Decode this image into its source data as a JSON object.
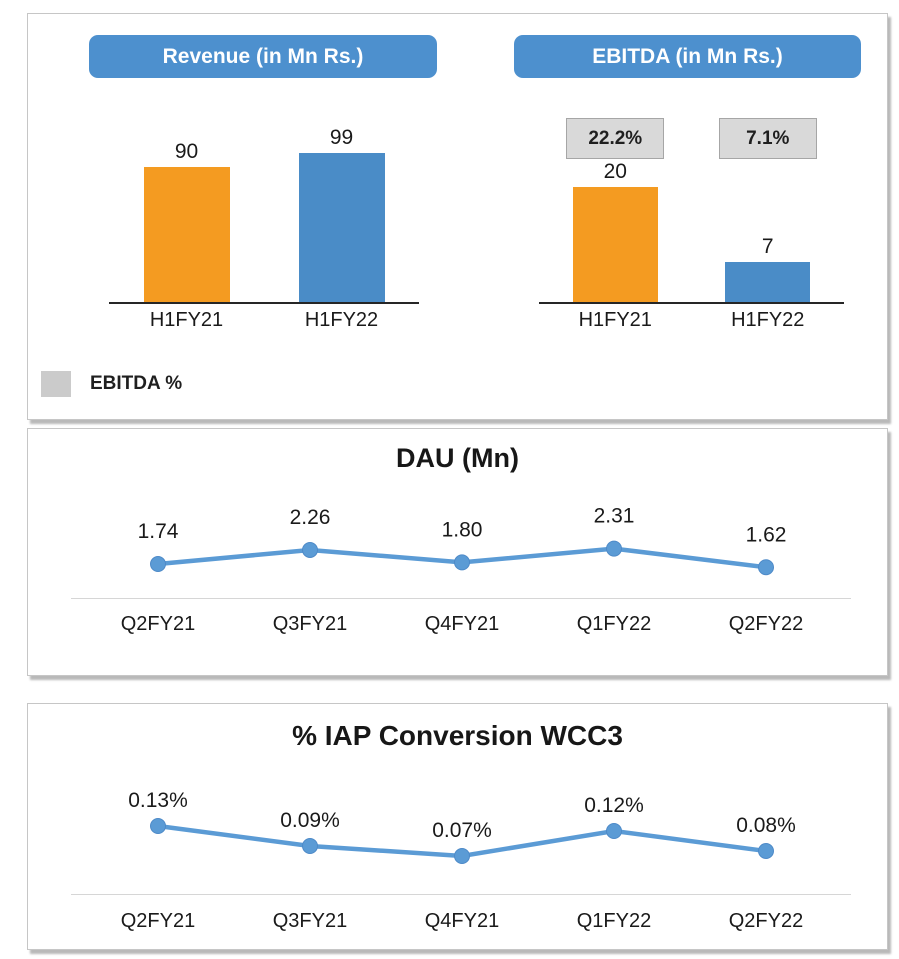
{
  "colors": {
    "header_blue": "#4d90ce",
    "bar_orange": "#f49b21",
    "bar_blue": "#4a8cc7",
    "line_blue": "#5b9bd5",
    "marker_edge": "#4e8ac8",
    "pct_box_bg": "#d9d9d9",
    "axis_black": "#262626",
    "axis_light": "#d6d6d6"
  },
  "legend": {
    "label": "EBITDA %",
    "swatch_color": "#cbcbcb"
  },
  "chart_data": [
    {
      "type": "bar",
      "title": "Revenue (in Mn Rs.)",
      "categories": [
        "H1FY21",
        "H1FY22"
      ],
      "values": [
        90,
        99
      ],
      "value_labels": [
        "90",
        "99"
      ],
      "bar_colors": [
        "#f49b21",
        "#4a8cc7"
      ],
      "ylim": [
        0,
        99
      ],
      "grid": false,
      "legend_position": "none"
    },
    {
      "type": "bar",
      "title": "EBITDA (in Mn Rs.)",
      "categories": [
        "H1FY21",
        "H1FY22"
      ],
      "values": [
        20,
        7
      ],
      "value_labels": [
        "20",
        "7"
      ],
      "percent_labels": [
        "22.2%",
        "7.1%"
      ],
      "bar_colors": [
        "#f49b21",
        "#4a8cc7"
      ],
      "ylim": [
        0,
        20
      ],
      "grid": false,
      "legend_position": "bottom-left"
    },
    {
      "type": "line",
      "title": "DAU (Mn)",
      "categories": [
        "Q2FY21",
        "Q3FY21",
        "Q4FY21",
        "Q1FY22",
        "Q2FY22"
      ],
      "values": [
        1.74,
        2.26,
        1.8,
        2.31,
        1.62
      ],
      "value_labels": [
        "1.74",
        "2.26",
        "1.80",
        "2.31",
        "1.62"
      ],
      "line_color": "#5b9bd5",
      "grid": false,
      "legend_position": "none"
    },
    {
      "type": "line",
      "title": "% IAP Conversion WCC3",
      "categories": [
        "Q2FY21",
        "Q3FY21",
        "Q4FY21",
        "Q1FY22",
        "Q2FY22"
      ],
      "values": [
        0.13,
        0.09,
        0.07,
        0.12,
        0.08
      ],
      "value_labels": [
        "0.13%",
        "0.09%",
        "0.07%",
        "0.12%",
        "0.08%"
      ],
      "line_color": "#5b9bd5",
      "grid": false,
      "legend_position": "none"
    }
  ]
}
